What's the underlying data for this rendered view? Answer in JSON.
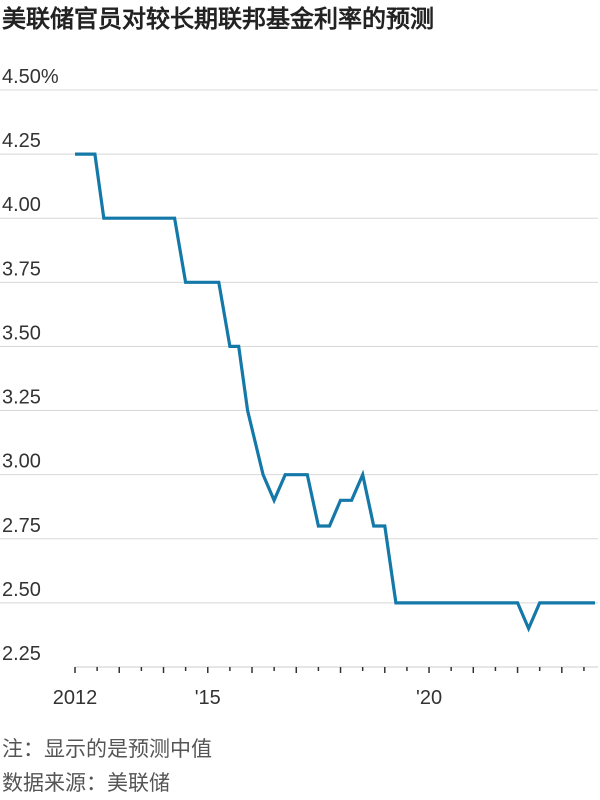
{
  "page": {
    "title": "美联储官员对较长期联邦基金利率的预测",
    "note": "注：显示的是预测中值",
    "source": "数据来源：美联储"
  },
  "colors": {
    "line": "#1478a8",
    "grid": "#d8d8d8",
    "axis": "#333333",
    "text": "#222222"
  },
  "chart_data": {
    "type": "line",
    "title": "美联储官员对较长期联邦基金利率的预测",
    "xlabel": "",
    "ylabel": "",
    "ylim": [
      2.25,
      4.5
    ],
    "xlim": [
      2012.0,
      2023.75
    ],
    "y_ticks": [
      {
        "value": 4.5,
        "label": "4.50%"
      },
      {
        "value": 4.25,
        "label": "4.25"
      },
      {
        "value": 4.0,
        "label": "4.00"
      },
      {
        "value": 3.75,
        "label": "3.75"
      },
      {
        "value": 3.5,
        "label": "3.50"
      },
      {
        "value": 3.25,
        "label": "3.25"
      },
      {
        "value": 3.0,
        "label": "3.00"
      },
      {
        "value": 2.75,
        "label": "2.75"
      },
      {
        "value": 2.5,
        "label": "2.50"
      },
      {
        "value": 2.25,
        "label": "2.25"
      }
    ],
    "x_labels": [
      {
        "value": 2012,
        "label": "2012"
      },
      {
        "value": 2015,
        "label": "'15"
      },
      {
        "value": 2020,
        "label": "'20"
      }
    ],
    "x_minor_ticks": [
      2012,
      2013,
      2014,
      2015,
      2016,
      2017,
      2018,
      2019,
      2020,
      2021,
      2022,
      2023
    ],
    "grid": true,
    "legend": "none",
    "series": [
      {
        "x": [
          2012.0,
          2012.45,
          2012.65,
          2013.25,
          2014.0,
          2014.25,
          2014.5,
          2015.0,
          2015.25,
          2015.5,
          2015.7,
          2015.9,
          2016.25,
          2016.5,
          2016.75,
          2017.0,
          2017.25,
          2017.5,
          2017.75,
          2018.0,
          2018.25,
          2018.5,
          2018.75,
          2019.0,
          2019.25,
          2019.5,
          2019.75,
          2020.0,
          2020.5,
          2021.0,
          2021.5,
          2021.75,
          2022.0,
          2022.25,
          2022.5,
          2022.75,
          2023.0,
          2023.25,
          2023.5,
          2023.75
        ],
        "values": [
          4.25,
          4.25,
          4.0,
          4.0,
          4.0,
          4.0,
          3.75,
          3.75,
          3.75,
          3.5,
          3.5,
          3.25,
          3.0,
          2.9,
          3.0,
          3.0,
          3.0,
          2.8,
          2.8,
          2.9,
          2.9,
          3.0,
          2.8,
          2.8,
          2.5,
          2.5,
          2.5,
          2.5,
          2.5,
          2.5,
          2.5,
          2.5,
          2.5,
          2.4,
          2.5,
          2.5,
          2.5,
          2.5,
          2.5,
          2.5
        ]
      }
    ]
  }
}
